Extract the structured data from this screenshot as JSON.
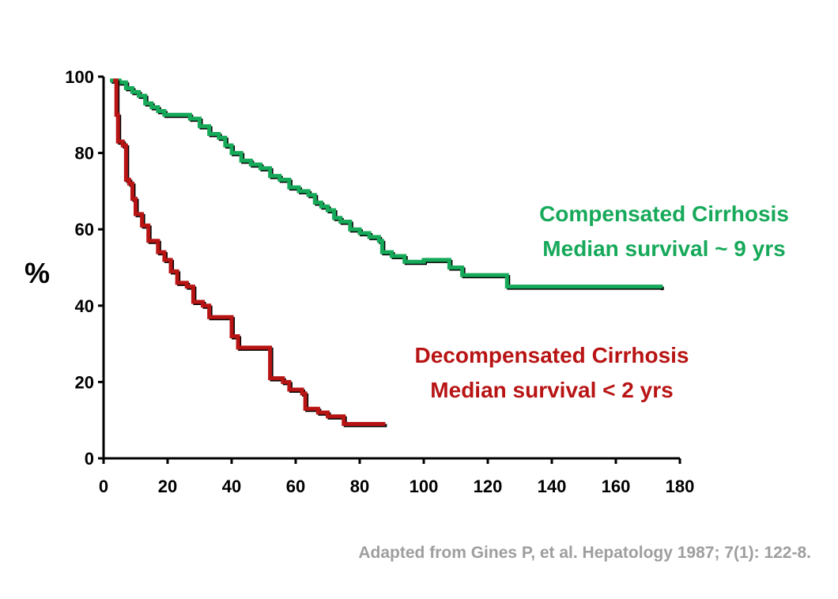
{
  "chart_data": {
    "type": "line",
    "ylabel": "%",
    "xlabel": "",
    "xlim": [
      0,
      180
    ],
    "ylim": [
      0,
      100
    ],
    "x_ticks": [
      0,
      20,
      40,
      60,
      80,
      100,
      120,
      140,
      160,
      180
    ],
    "y_ticks": [
      0,
      20,
      40,
      60,
      80,
      100
    ],
    "grid": false,
    "series": [
      {
        "name": "Compensated Cirrhosis",
        "color": "#17a95a",
        "points": [
          [
            2,
            99
          ],
          [
            5,
            98.5
          ],
          [
            7,
            97
          ],
          [
            9,
            96
          ],
          [
            11,
            95
          ],
          [
            13,
            93
          ],
          [
            15,
            92
          ],
          [
            17,
            91
          ],
          [
            19,
            90
          ],
          [
            24,
            90
          ],
          [
            27,
            89
          ],
          [
            30,
            87
          ],
          [
            33,
            85
          ],
          [
            36,
            84
          ],
          [
            38,
            82
          ],
          [
            40,
            80
          ],
          [
            43,
            78
          ],
          [
            46,
            77
          ],
          [
            49,
            76
          ],
          [
            52,
            74
          ],
          [
            55,
            73
          ],
          [
            58,
            71
          ],
          [
            61,
            70
          ],
          [
            64,
            69
          ],
          [
            66,
            67
          ],
          [
            68,
            66
          ],
          [
            70,
            65
          ],
          [
            72,
            63
          ],
          [
            74,
            62
          ],
          [
            77,
            60
          ],
          [
            80,
            59
          ],
          [
            83,
            58
          ],
          [
            86,
            57
          ],
          [
            87,
            54
          ],
          [
            90,
            53
          ],
          [
            94,
            51.5
          ],
          [
            100,
            52
          ],
          [
            106,
            52
          ],
          [
            108,
            50
          ],
          [
            112,
            48
          ],
          [
            126,
            48
          ],
          [
            126,
            45
          ],
          [
            174,
            44.5
          ]
        ]
      },
      {
        "name": "Decompensated Cirrhosis",
        "color": "#b81414",
        "points": [
          [
            3,
            99
          ],
          [
            4,
            90
          ],
          [
            4.5,
            83
          ],
          [
            6,
            82
          ],
          [
            7,
            73
          ],
          [
            8,
            72
          ],
          [
            9,
            68
          ],
          [
            10,
            64
          ],
          [
            12,
            61
          ],
          [
            14,
            57
          ],
          [
            17,
            54
          ],
          [
            19,
            52
          ],
          [
            21,
            49
          ],
          [
            23,
            46
          ],
          [
            26,
            45
          ],
          [
            28,
            41
          ],
          [
            31,
            40
          ],
          [
            33,
            37
          ],
          [
            38,
            37
          ],
          [
            40,
            32
          ],
          [
            42,
            29
          ],
          [
            50,
            29
          ],
          [
            52,
            21
          ],
          [
            56,
            20
          ],
          [
            58,
            18
          ],
          [
            62,
            17
          ],
          [
            63,
            13
          ],
          [
            67,
            12
          ],
          [
            70,
            11
          ],
          [
            74,
            11
          ],
          [
            75,
            9
          ],
          [
            88,
            9
          ]
        ]
      }
    ],
    "annotations": [
      {
        "line1": "Compensated Cirrhosis",
        "line2": "Median survival ~ 9 yrs",
        "color": "#17a95a"
      },
      {
        "line1": "Decompensated Cirrhosis",
        "line2": "Median survival < 2 yrs",
        "color": "#b81414"
      }
    ]
  },
  "citation": "Adapted from Gines P, et al. Hepatology 1987; 7(1): 122-8."
}
